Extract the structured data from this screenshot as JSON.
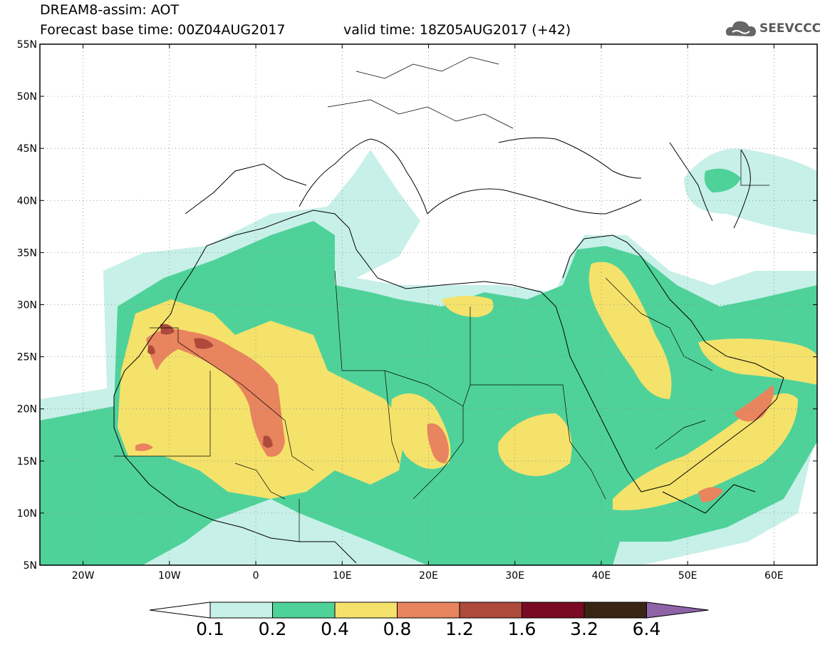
{
  "header": {
    "title": "DREAM8-assim: AOT",
    "base_time": "Forecast base time: 00Z04AUG2017",
    "valid_time": "valid time: 18Z05AUG2017 (+42)"
  },
  "logo": {
    "text": "SEEVCCC",
    "icon": "cloud-icon"
  },
  "map": {
    "lon_range": [
      -25,
      65
    ],
    "lat_range": [
      5,
      55
    ],
    "lat_ticks": [
      "55N",
      "50N",
      "45N",
      "40N",
      "35N",
      "30N",
      "25N",
      "20N",
      "15N",
      "10N",
      "5N"
    ],
    "lon_ticks": [
      "20W",
      "10W",
      "0",
      "10E",
      "20E",
      "30E",
      "40E",
      "50E",
      "60E"
    ]
  },
  "colorbar": {
    "labels": [
      "0.1",
      "0.2",
      "0.4",
      "0.8",
      "1.2",
      "1.6",
      "3.2",
      "6.4"
    ],
    "colors": [
      "#ffffff",
      "#c7f0e8",
      "#4fd29a",
      "#f5e26b",
      "#e8845e",
      "#ad4a3b",
      "#7a0a24",
      "#3a2414",
      "#8e63a8"
    ]
  }
}
